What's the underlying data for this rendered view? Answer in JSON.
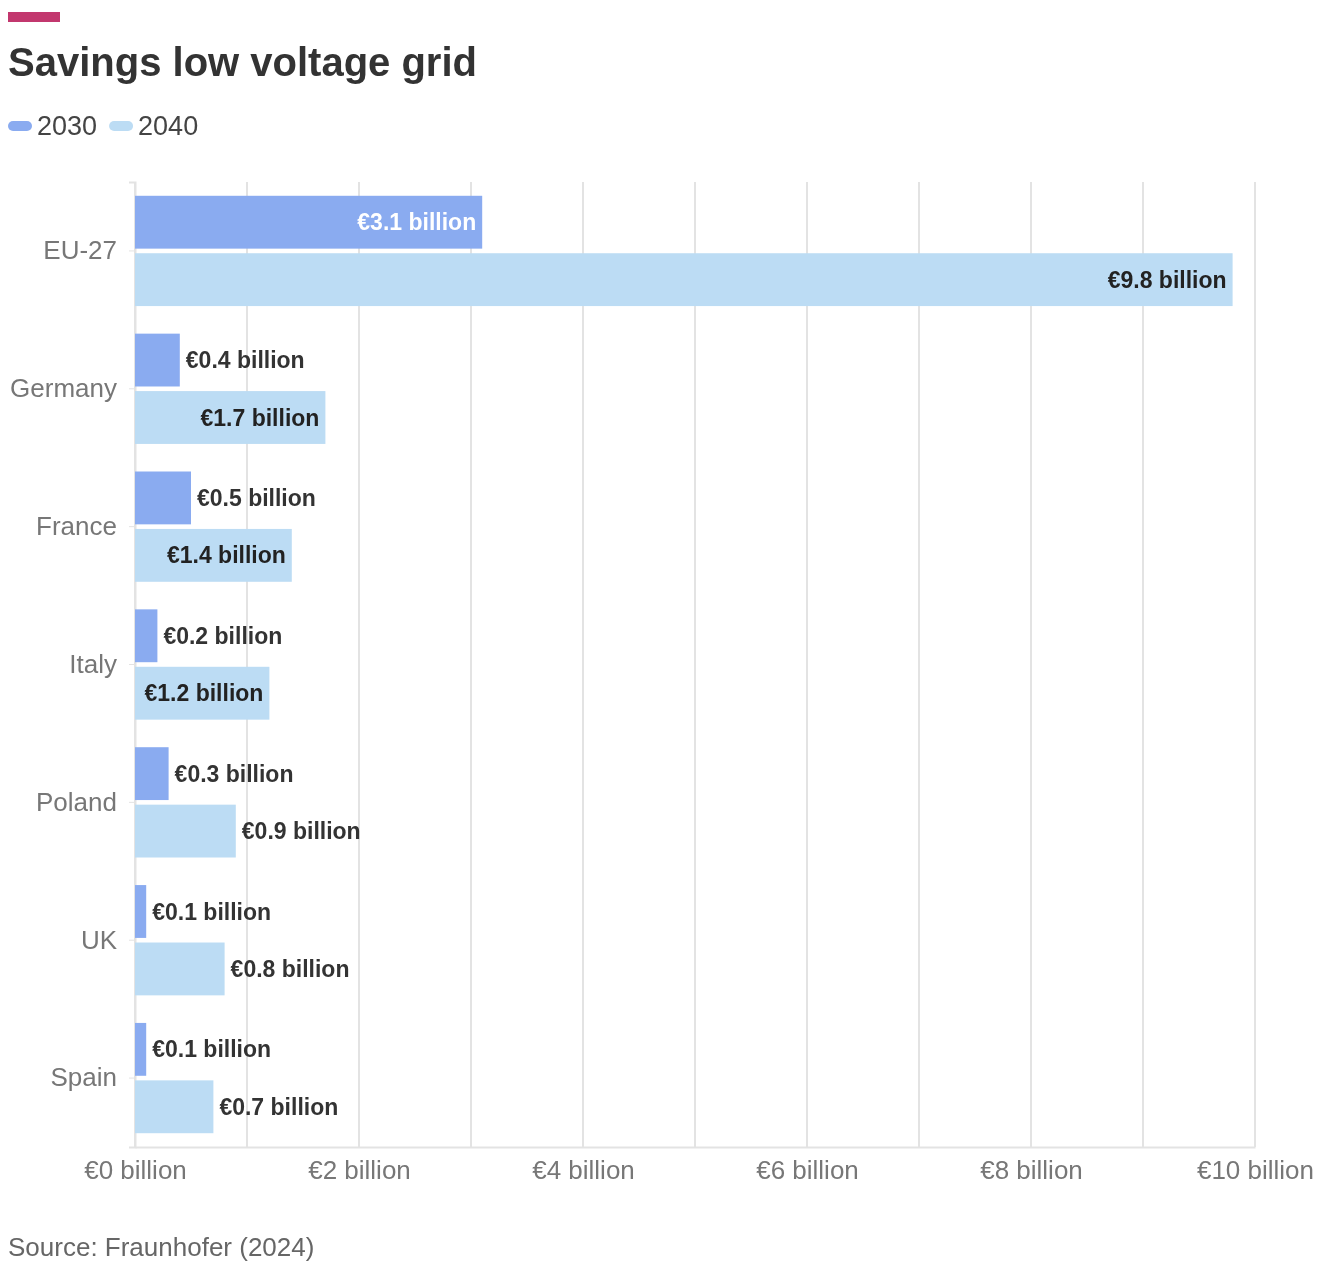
{
  "chart_data": {
    "type": "bar",
    "orientation": "horizontal",
    "title": "Savings low voltage grid",
    "categories": [
      "EU-27",
      "Germany",
      "France",
      "Italy",
      "Poland",
      "UK",
      "Spain"
    ],
    "series": [
      {
        "name": "2030",
        "color": "#8aabf0",
        "values": [
          3.1,
          0.4,
          0.5,
          0.2,
          0.3,
          0.1,
          0.1
        ],
        "value_labels": [
          "€3.1 billion",
          "€0.4 billion",
          "€0.5 billion",
          "€0.2 billion",
          "€0.3 billion",
          "€0.1 billion",
          "€0.1 billion"
        ]
      },
      {
        "name": "2040",
        "color": "#bcdcf4",
        "values": [
          9.8,
          1.7,
          1.4,
          1.2,
          0.9,
          0.8,
          0.7
        ],
        "value_labels": [
          "€9.8 billion",
          "€1.7 billion",
          "€1.4 billion",
          "€1.2 billion",
          "€0.9 billion",
          "€0.8 billion",
          "€0.7 billion"
        ]
      }
    ],
    "xlim": [
      0,
      10
    ],
    "xticks": [
      {
        "value": 0,
        "label": "€0 billion"
      },
      {
        "value": 1,
        "label": null
      },
      {
        "value": 2,
        "label": "€2 billion"
      },
      {
        "value": 3,
        "label": null
      },
      {
        "value": 4,
        "label": "€4 billion"
      },
      {
        "value": 5,
        "label": null
      },
      {
        "value": 6,
        "label": "€6 billion"
      },
      {
        "value": 7,
        "label": null
      },
      {
        "value": 8,
        "label": "€8 billion"
      },
      {
        "value": 9,
        "label": null
      },
      {
        "value": 10,
        "label": "€10 billion"
      }
    ],
    "grid": "x",
    "legend": "top left",
    "annotations": [
      "Source: Fraunhofer (2024)"
    ]
  }
}
